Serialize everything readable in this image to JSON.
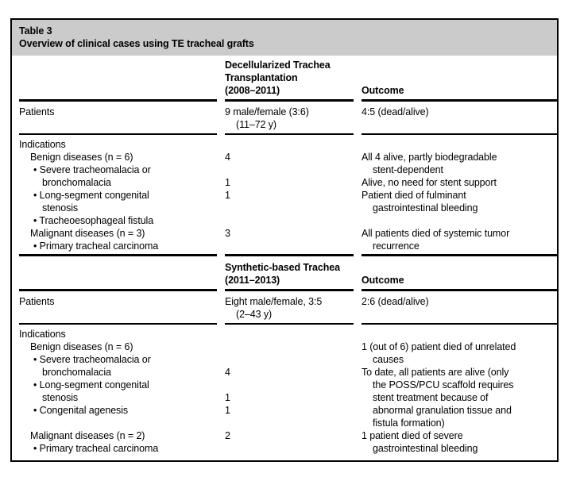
{
  "colors": {
    "title_band_bg": "#cbcbcb",
    "border": "#000000",
    "text": "#000000",
    "page_bg": "#ffffff"
  },
  "title": {
    "label": "Table 3",
    "caption": "Overview of clinical cases using TE tracheal grafts"
  },
  "sections": [
    {
      "name": "decellularized-trachea",
      "header": {
        "line1": "Decellularized Trachea",
        "line2": "Transplantation",
        "line3": "(2008–2011)",
        "outcome": "Outcome"
      },
      "patients": {
        "label": "Patients",
        "value_line1": "9 male/female (3:6)",
        "value_line2": "(11–72 y)",
        "outcome": "4:5 (dead/alive)"
      },
      "indications_label": "Indications",
      "rows": [
        {
          "c1": "Benign diseases (n = 6)",
          "c2": "4",
          "c3": "All 4 alive, partly biodegradable"
        },
        {
          "c1": "• Severe tracheomalacia or",
          "c2": "",
          "c3": "stent-dependent"
        },
        {
          "c1": "bronchomalacia",
          "c2": "1",
          "c3": "Alive, no need for stent support"
        },
        {
          "c1": "• Long-segment congenital",
          "c2": "1",
          "c3": "Patient died of fulminant"
        },
        {
          "c1": "stenosis",
          "c2": "",
          "c3": "gastrointestinal bleeding"
        },
        {
          "c1": "• Tracheoesophageal fistula",
          "c2": "",
          "c3": ""
        },
        {
          "c1": "Malignant diseases (n = 3)",
          "c2": "3",
          "c3": "All patients died of systemic tumor"
        },
        {
          "c1": "• Primary tracheal carcinoma",
          "c2": "",
          "c3": "recurrence"
        }
      ]
    },
    {
      "name": "synthetic-based-trachea",
      "header": {
        "line1": "Synthetic-based Trachea",
        "line2": "(2011–2013)",
        "outcome": "Outcome"
      },
      "patients": {
        "label": "Patients",
        "value_line1": "Eight male/female, 3:5",
        "value_line2": "(2–43 y)",
        "outcome": "2:6 (dead/alive)"
      },
      "indications_label": "Indications",
      "rows": [
        {
          "c1": "Benign diseases (n = 6)",
          "c2": "",
          "c3": "1 (out of 6) patient died of unrelated"
        },
        {
          "c1": "• Severe tracheomalacia or",
          "c2": "",
          "c3": "causes"
        },
        {
          "c1": "bronchomalacia",
          "c2": "4",
          "c3": "To date, all patients are alive (only"
        },
        {
          "c1": "• Long-segment congenital",
          "c2": "",
          "c3": "the POSS/PCU scaffold requires"
        },
        {
          "c1": "stenosis",
          "c2": "1",
          "c3": "stent treatment because of"
        },
        {
          "c1": "• Congenital agenesis",
          "c2": "1",
          "c3": "abnormal granulation tissue and"
        },
        {
          "c1": "",
          "c2": "",
          "c3": "fistula formation)"
        },
        {
          "c1": "Malignant diseases (n = 2)",
          "c2": "2",
          "c3": "1 patient died of severe"
        },
        {
          "c1": "• Primary tracheal carcinoma",
          "c2": "",
          "c3": "gastrointestinal bleeding"
        }
      ]
    }
  ]
}
